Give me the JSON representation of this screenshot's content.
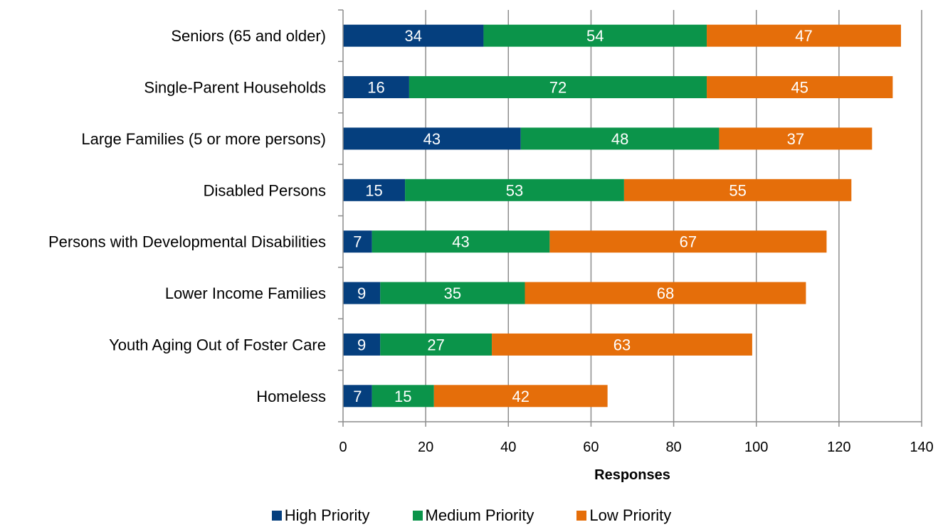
{
  "chart_data": {
    "type": "bar",
    "orientation": "horizontal",
    "stacked": true,
    "categories": [
      "Seniors (65 and older)",
      "Single-Parent Households",
      "Large Families (5 or more persons)",
      "Disabled Persons",
      "Persons with Developmental Disabilities",
      "Lower Income Families",
      "Youth Aging Out of Foster Care",
      "Homeless"
    ],
    "series": [
      {
        "name": "High Priority",
        "color": "#053F7E",
        "values": [
          34,
          16,
          43,
          15,
          7,
          9,
          9,
          7
        ]
      },
      {
        "name": "Medium Priority",
        "color": "#0B944A",
        "values": [
          54,
          72,
          48,
          53,
          43,
          35,
          27,
          15
        ]
      },
      {
        "name": "Low Priority",
        "color": "#E56E0A",
        "values": [
          47,
          45,
          37,
          55,
          67,
          68,
          63,
          42
        ]
      }
    ],
    "xlabel": "Responses",
    "ylabel": "",
    "xlim": [
      0,
      140
    ],
    "xticks": [
      "0",
      "20",
      "40",
      "60",
      "80",
      "100",
      "120",
      "140"
    ],
    "grid": "vertical",
    "legend_position": "bottom"
  }
}
